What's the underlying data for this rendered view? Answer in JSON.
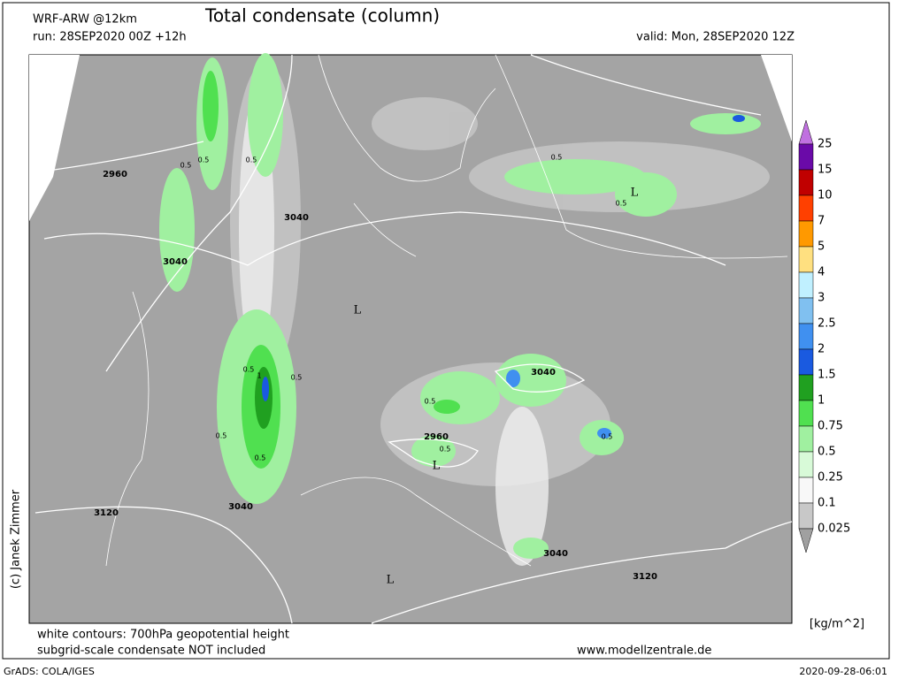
{
  "header": {
    "model": "WRF-ARW @12km",
    "title": "Total condensate (column)",
    "run": "run: 28SEP2020 00Z +12h",
    "valid": "valid: Mon, 28SEP2020 12Z"
  },
  "colorbar": {
    "unit": "[kg/m^2]",
    "labels": [
      "25",
      "15",
      "10",
      "7",
      "5",
      "4",
      "3",
      "2.5",
      "2",
      "1.5",
      "1",
      "0.75",
      "0.5",
      "0.25",
      "0.1",
      "0.025"
    ],
    "colors": [
      "#c070e0",
      "#6a0aa8",
      "#c00000",
      "#ff4000",
      "#ff9900",
      "#ffe080",
      "#c0f0ff",
      "#80c0f0",
      "#4090f0",
      "#1a5ae0",
      "#20a020",
      "#50e050",
      "#a0f0a0",
      "#d8fad8",
      "#f8f8f8",
      "#c8c8c8",
      "#a0a0a0"
    ]
  },
  "map": {
    "labels": [
      "2960",
      "3040",
      "3040",
      "3040",
      "3120",
      "2960",
      "3040",
      "3040",
      "3120",
      "L",
      "L",
      "L",
      "L",
      "0.5",
      "0.5",
      "0.5",
      "0.5",
      "0.5",
      "0.5",
      "0.5",
      "0.5",
      "0.5",
      "0.5",
      "0.5",
      "0.5",
      "1"
    ]
  },
  "footer": {
    "note1": "white contours: 700hPa geopotential height",
    "note2": "subgrid-scale condensate NOT included",
    "website": "www.modellzentrale.de",
    "software": "GrADS: COLA/IGES",
    "timestamp": "2020-09-28-06:01",
    "copyright": "(c) Janek Zimmer"
  }
}
